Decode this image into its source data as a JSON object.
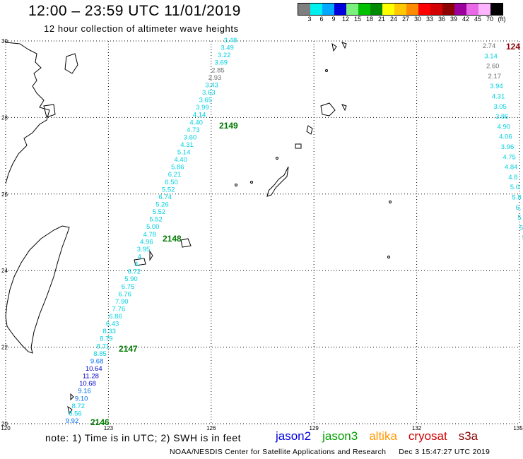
{
  "header": {
    "title": "12:00 – 23:59 UTC 11/01/2019",
    "subtitle": "12 hour collection of altimeter wave heights"
  },
  "colorbar": {
    "colors": [
      "#7f7f7f",
      "#00f0f0",
      "#00a8ff",
      "#0000dd",
      "#7cf07c",
      "#00c000",
      "#008a00",
      "#ffff00",
      "#ffc800",
      "#ff8c00",
      "#ff0000",
      "#d20000",
      "#8c0000",
      "#9c009c",
      "#e868e8",
      "#ffb4ff",
      "#000000"
    ],
    "labels": [
      "3",
      "6",
      "9",
      "12",
      "15",
      "18",
      "21",
      "24",
      "27",
      "30",
      "33",
      "36",
      "39",
      "42",
      "45",
      "70",
      "(ft)"
    ]
  },
  "map": {
    "lon_range": [
      120,
      135
    ],
    "lat_range": [
      20,
      30
    ],
    "lon_ticks": [
      "120",
      "123",
      "126",
      "129",
      "132",
      "135"
    ],
    "lat_ticks": [
      "30",
      "28",
      "26",
      "24",
      "22",
      "20"
    ],
    "pass_labels": [
      {
        "id": "2149",
        "lat": 27.9,
        "color": "#007a00"
      },
      {
        "id": "2148",
        "lat": 24.6,
        "color": "#007a00"
      },
      {
        "id": "2147",
        "lat": 22.0,
        "color": "#007a00"
      },
      {
        "id": "2146",
        "lat": 20.0,
        "color": "#007a00"
      },
      {
        "id": "124",
        "lat": 29.9,
        "color": "#8c0000"
      }
    ],
    "track_central": [
      {
        "v": "3.48",
        "c": "#00d0e0"
      },
      {
        "v": "3.49",
        "c": "#00d0e0"
      },
      {
        "v": "3.22",
        "c": "#00d0e0"
      },
      {
        "v": "3.69",
        "c": "#00d0e0"
      },
      {
        "v": "2.85",
        "c": "#707070"
      },
      {
        "v": "2.93",
        "c": "#707070"
      },
      {
        "v": "3.43",
        "c": "#00d0e0"
      },
      {
        "v": "3.63",
        "c": "#00d0e0"
      },
      {
        "v": "3.65",
        "c": "#00d0e0"
      },
      {
        "v": "3.99",
        "c": "#00d0e0"
      },
      {
        "v": "4.14",
        "c": "#00d0e0"
      },
      {
        "v": "4.40",
        "c": "#00d0e0"
      },
      {
        "v": "4.73",
        "c": "#00d0e0"
      },
      {
        "v": "3.60",
        "c": "#00d0e0"
      },
      {
        "v": "4.31",
        "c": "#00d0e0"
      },
      {
        "v": "5.14",
        "c": "#00d0e0"
      },
      {
        "v": "4.40",
        "c": "#00d0e0"
      },
      {
        "v": "5.86",
        "c": "#00d0e0"
      },
      {
        "v": "6.21",
        "c": "#00d0e0"
      },
      {
        "v": "6.50",
        "c": "#00d0e0"
      },
      {
        "v": "5.52",
        "c": "#00d0e0"
      },
      {
        "v": "6.74",
        "c": "#00d0e0"
      },
      {
        "v": "5.26",
        "c": "#00d0e0"
      },
      {
        "v": "5.52",
        "c": "#00d0e0"
      },
      {
        "v": "5.52",
        "c": "#00d0e0"
      },
      {
        "v": "5.00",
        "c": "#00d0e0"
      },
      {
        "v": "4.78",
        "c": "#00d0e0"
      },
      {
        "v": "4.96",
        "c": "#00d0e0"
      },
      {
        "v": "3.95",
        "c": "#00d0e0"
      },
      {
        "v": "4.",
        "c": "#00d0e0"
      },
      {
        "v": "4.",
        "c": "#00d0e0"
      },
      {
        "v": "6.72",
        "c": "#00d0e0"
      },
      {
        "v": "5.90",
        "c": "#00d0e0"
      },
      {
        "v": "6.75",
        "c": "#00d0e0"
      },
      {
        "v": "6.76",
        "c": "#00d0e0"
      },
      {
        "v": "7.90",
        "c": "#00d0e0"
      },
      {
        "v": "7.76",
        "c": "#00d0e0"
      },
      {
        "v": "6.86",
        "c": "#00d0e0"
      },
      {
        "v": "6.43",
        "c": "#00d0e0"
      },
      {
        "v": "8.33",
        "c": "#00d0e0"
      },
      {
        "v": "8.79",
        "c": "#00d0e0"
      },
      {
        "v": "8.71",
        "c": "#00d0e0"
      },
      {
        "v": "8.85",
        "c": "#00d0e0"
      },
      {
        "v": "9.68",
        "c": "#0070f0"
      },
      {
        "v": "10.64",
        "c": "#0000c8"
      },
      {
        "v": "11.28",
        "c": "#0000c8"
      },
      {
        "v": "10.68",
        "c": "#0000c8"
      },
      {
        "v": "9.16",
        "c": "#0070f0"
      },
      {
        "v": "9.10",
        "c": "#0070f0"
      },
      {
        "v": "8.72",
        "c": "#00d0e0"
      },
      {
        "v": "8.56",
        "c": "#00d0e0"
      },
      {
        "v": "9.92",
        "c": "#0070f0"
      }
    ],
    "track_east": [
      {
        "v": "2.74",
        "c": "#707070"
      },
      {
        "v": "3.14",
        "c": "#00d0e0"
      },
      {
        "v": "2.60",
        "c": "#707070"
      },
      {
        "v": "2.17",
        "c": "#707070"
      },
      {
        "v": "3.94",
        "c": "#00d0e0"
      },
      {
        "v": "4.31",
        "c": "#00d0e0"
      },
      {
        "v": "3.05",
        "c": "#00d0e0"
      },
      {
        "v": "3.86",
        "c": "#00d0e0"
      },
      {
        "v": "4.90",
        "c": "#00d0e0"
      },
      {
        "v": "4.06",
        "c": "#00d0e0"
      },
      {
        "v": "3.96",
        "c": "#00d0e0"
      },
      {
        "v": "4.75",
        "c": "#00d0e0"
      },
      {
        "v": "4.84",
        "c": "#00d0e0"
      },
      {
        "v": "4.8",
        "c": "#00d0e0"
      },
      {
        "v": "5.0",
        "c": "#00d0e0"
      },
      {
        "v": "5.8",
        "c": "#00d0e0"
      },
      {
        "v": "6.",
        "c": "#00d0e0"
      },
      {
        "v": "5.",
        "c": "#00d0e0"
      },
      {
        "v": "5.",
        "c": "#00d0e0"
      },
      {
        "v": "5",
        "c": "#00d0e0"
      }
    ]
  },
  "footer": {
    "note": "note: 1) Time is in UTC; 2) SWH is in feet",
    "missions": [
      {
        "label": "jason2",
        "color": "#0000e0"
      },
      {
        "label": "jason3",
        "color": "#00a000"
      },
      {
        "label": "altika",
        "color": "#ff9900"
      },
      {
        "label": "cryosat",
        "color": "#d00000"
      },
      {
        "label": "s3a",
        "color": "#8c0000"
      }
    ],
    "credit": "NOAA/NESDIS Center for Satellite Applications and Research",
    "timestamp": "Dec  3 15:47:27 UTC 2019"
  }
}
